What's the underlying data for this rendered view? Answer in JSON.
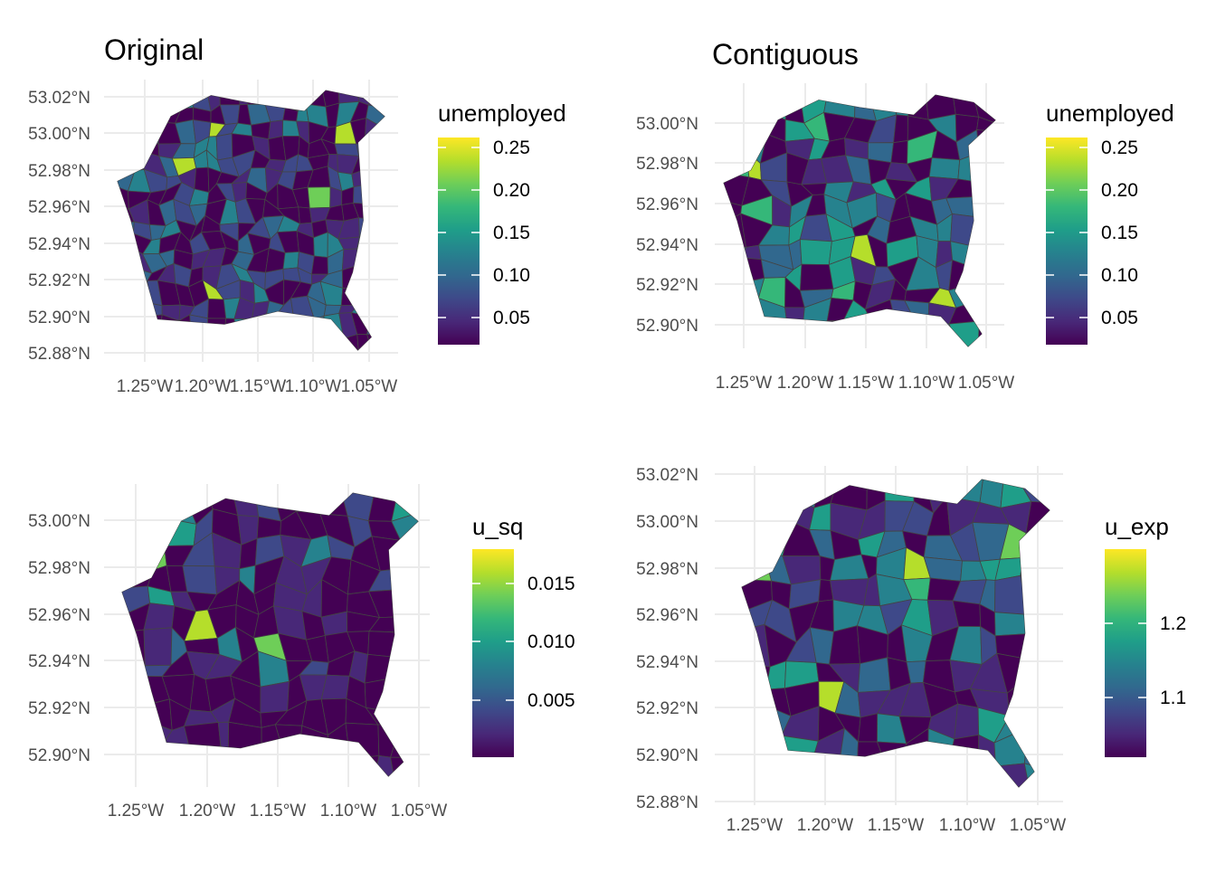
{
  "chart_data": [
    {
      "type": "choropleth",
      "title": "Original",
      "y_ticks": [
        "53.02°N",
        "53.00°N",
        "52.98°N",
        "52.96°N",
        "52.94°N",
        "52.92°N",
        "52.90°N",
        "52.88°N"
      ],
      "x_ticks": [
        "1.25°W",
        "1.20°W",
        "1.15°W",
        "1.10°W",
        "1.05°W"
      ],
      "legend": {
        "title": "unemployed",
        "ticks": [
          "0.25",
          "0.20",
          "0.15",
          "0.10",
          "0.05"
        ],
        "range": [
          0.01,
          0.27
        ]
      },
      "grid": true
    },
    {
      "type": "choropleth",
      "title": "Contiguous",
      "y_ticks": [
        "53.00°N",
        "52.98°N",
        "52.96°N",
        "52.94°N",
        "52.92°N",
        "52.90°N"
      ],
      "x_ticks": [
        "1.25°W",
        "1.20°W",
        "1.15°W",
        "1.10°W",
        "1.05°W"
      ],
      "legend": {
        "title": "unemployed",
        "ticks": [
          "0.25",
          "0.20",
          "0.15",
          "0.10",
          "0.05"
        ],
        "range": [
          0.01,
          0.27
        ]
      },
      "grid": true
    },
    {
      "type": "choropleth",
      "title": "",
      "y_ticks": [
        "53.00°N",
        "52.98°N",
        "52.96°N",
        "52.94°N",
        "52.92°N",
        "52.90°N"
      ],
      "x_ticks": [
        "1.25°W",
        "1.20°W",
        "1.15°W",
        "1.10°W",
        "1.05°W"
      ],
      "legend": {
        "title": "u_sq",
        "ticks": [
          "0.015",
          "0.010",
          "0.005"
        ],
        "range": [
          0.0,
          0.018
        ]
      },
      "grid": true
    },
    {
      "type": "choropleth",
      "title": "",
      "y_ticks": [
        "53.02°N",
        "53.00°N",
        "52.98°N",
        "52.96°N",
        "52.94°N",
        "52.92°N",
        "52.90°N",
        "52.88°N"
      ],
      "x_ticks": [
        "1.25°W",
        "1.20°W",
        "1.15°W",
        "1.10°W",
        "1.05°W"
      ],
      "legend": {
        "title": "u_exp",
        "ticks": [
          "1.2",
          "1.1"
        ],
        "range": [
          1.0,
          1.3
        ]
      },
      "grid": true
    }
  ],
  "colors": {
    "palette": "viridis",
    "stops": [
      "#440154",
      "#482878",
      "#3e4989",
      "#31688e",
      "#26828e",
      "#1f9e89",
      "#35b779",
      "#6ece58",
      "#b5de2b",
      "#fde725"
    ],
    "border": "#444444",
    "grid": "#ebebeb"
  }
}
